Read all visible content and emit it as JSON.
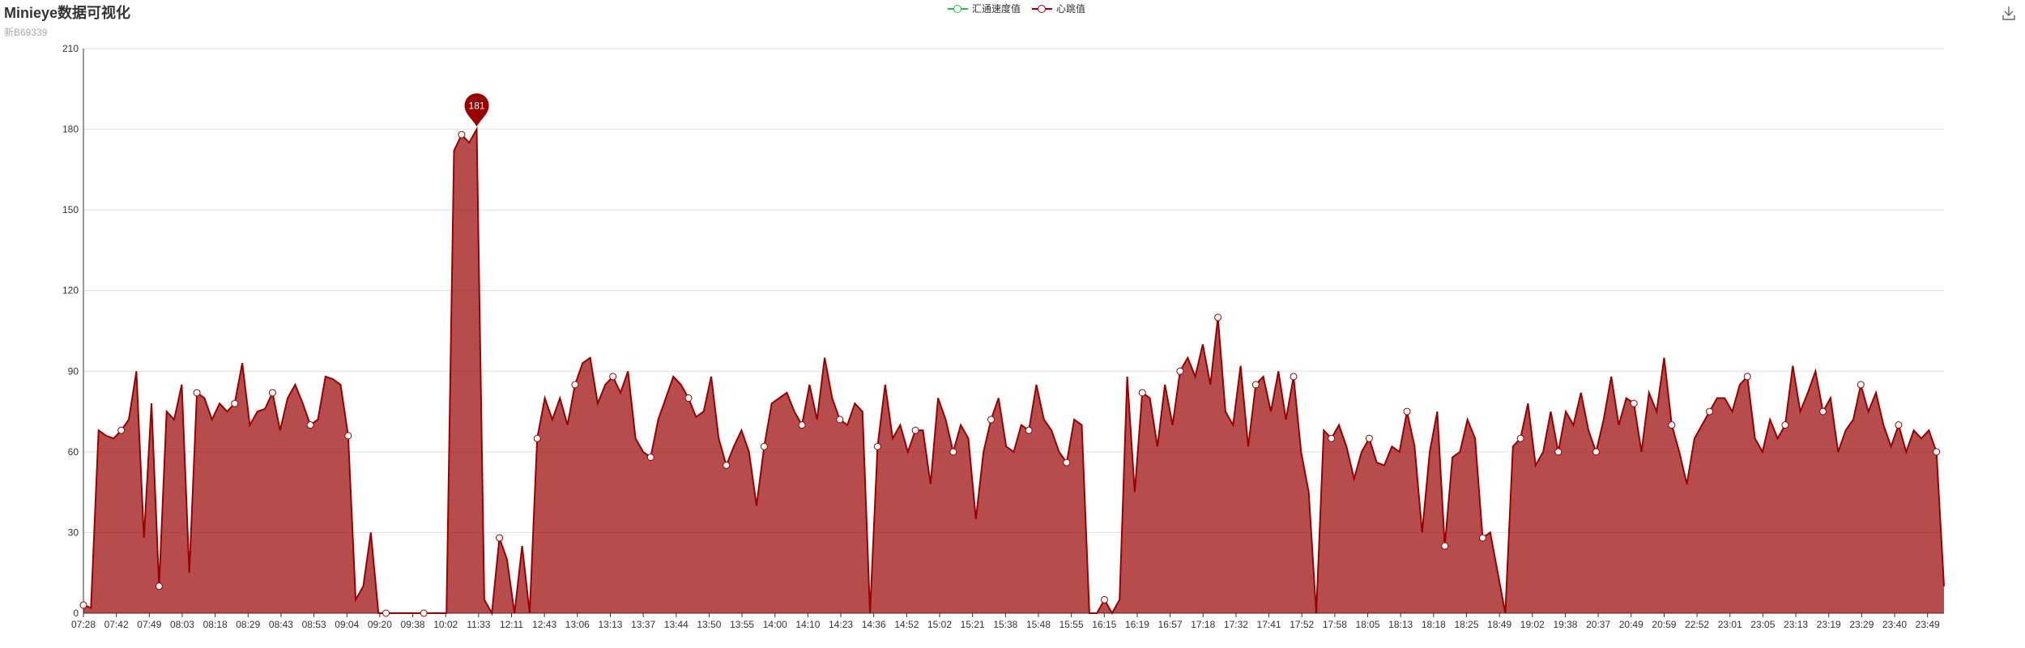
{
  "header": {
    "title": "Minieye数据可视化",
    "subtitle": "新B69339"
  },
  "legend": [
    {
      "name": "汇通速度值",
      "color": "#2db84d"
    },
    {
      "name": "心跳值",
      "color": "#990000"
    }
  ],
  "toolbar": {
    "save_icon": "download-icon"
  },
  "chart_data": {
    "type": "area",
    "title": "Minieye数据可视化",
    "subtitle": "新B69339",
    "ylim": [
      0,
      210
    ],
    "y_ticks": [
      0,
      30,
      60,
      90,
      120,
      150,
      180,
      210
    ],
    "x_ticks": [
      "07:28",
      "07:42",
      "07:49",
      "08:03",
      "08:18",
      "08:29",
      "08:43",
      "08:53",
      "09:04",
      "09:20",
      "09:38",
      "10:02",
      "11:33",
      "12:11",
      "12:43",
      "13:06",
      "13:13",
      "13:37",
      "13:44",
      "13:50",
      "13:55",
      "14:00",
      "14:10",
      "14:23",
      "14:36",
      "14:52",
      "15:02",
      "15:21",
      "15:38",
      "15:48",
      "15:55",
      "16:15",
      "16:19",
      "16:57",
      "17:18",
      "17:32",
      "17:41",
      "17:52",
      "17:58",
      "18:05",
      "18:13",
      "18:18",
      "18:25",
      "18:49",
      "19:02",
      "19:38",
      "20:37",
      "20:49",
      "20:59",
      "22:52",
      "23:01",
      "23:05",
      "23:13",
      "23:19",
      "23:29",
      "23:40",
      "23:49"
    ],
    "grid": true,
    "legend_position": "top-center",
    "markpoint": {
      "label": "181",
      "value": 181,
      "x_index": 12
    },
    "series": [
      {
        "name": "汇通速度值",
        "color": "#2db84d",
        "values": []
      },
      {
        "name": "心跳值",
        "color": "#990000",
        "values": [
          3,
          2,
          68,
          66,
          65,
          68,
          72,
          90,
          28,
          78,
          10,
          75,
          72,
          85,
          15,
          82,
          80,
          72,
          78,
          75,
          78,
          93,
          70,
          75,
          76,
          82,
          68,
          80,
          85,
          78,
          70,
          72,
          88,
          87,
          85,
          66,
          5,
          10,
          30,
          0,
          0,
          0,
          0,
          0,
          0,
          0,
          0,
          0,
          0,
          172,
          178,
          175,
          180,
          5,
          0,
          28,
          20,
          0,
          25,
          0,
          65,
          80,
          72,
          80,
          70,
          85,
          93,
          95,
          78,
          85,
          88,
          82,
          90,
          65,
          60,
          58,
          72,
          80,
          88,
          85,
          80,
          73,
          75,
          88,
          65,
          55,
          62,
          68,
          60,
          40,
          62,
          78,
          80,
          82,
          75,
          70,
          85,
          72,
          95,
          80,
          72,
          70,
          78,
          75,
          0,
          62,
          85,
          65,
          70,
          60,
          68,
          68,
          48,
          80,
          72,
          60,
          70,
          65,
          35,
          60,
          72,
          80,
          62,
          60,
          70,
          68,
          85,
          72,
          68,
          60,
          56,
          72,
          70,
          0,
          0,
          5,
          0,
          5,
          88,
          45,
          82,
          80,
          62,
          85,
          70,
          90,
          95,
          88,
          100,
          85,
          110,
          75,
          70,
          92,
          62,
          85,
          88,
          75,
          90,
          72,
          88,
          60,
          45,
          0,
          68,
          65,
          70,
          62,
          50,
          60,
          65,
          56,
          55,
          62,
          60,
          75,
          62,
          30,
          60,
          75,
          25,
          58,
          60,
          72,
          65,
          28,
          30,
          15,
          0,
          62,
          65,
          78,
          55,
          60,
          75,
          60,
          75,
          70,
          82,
          68,
          60,
          72,
          88,
          70,
          80,
          78,
          60,
          82,
          75,
          95,
          70,
          60,
          48,
          65,
          70,
          75,
          80,
          80,
          75,
          85,
          88,
          65,
          60,
          72,
          65,
          70,
          92,
          75,
          82,
          90,
          75,
          80,
          60,
          68,
          72,
          85,
          75,
          82,
          70,
          62,
          70,
          60,
          68,
          65,
          68,
          60,
          10
        ]
      }
    ]
  }
}
